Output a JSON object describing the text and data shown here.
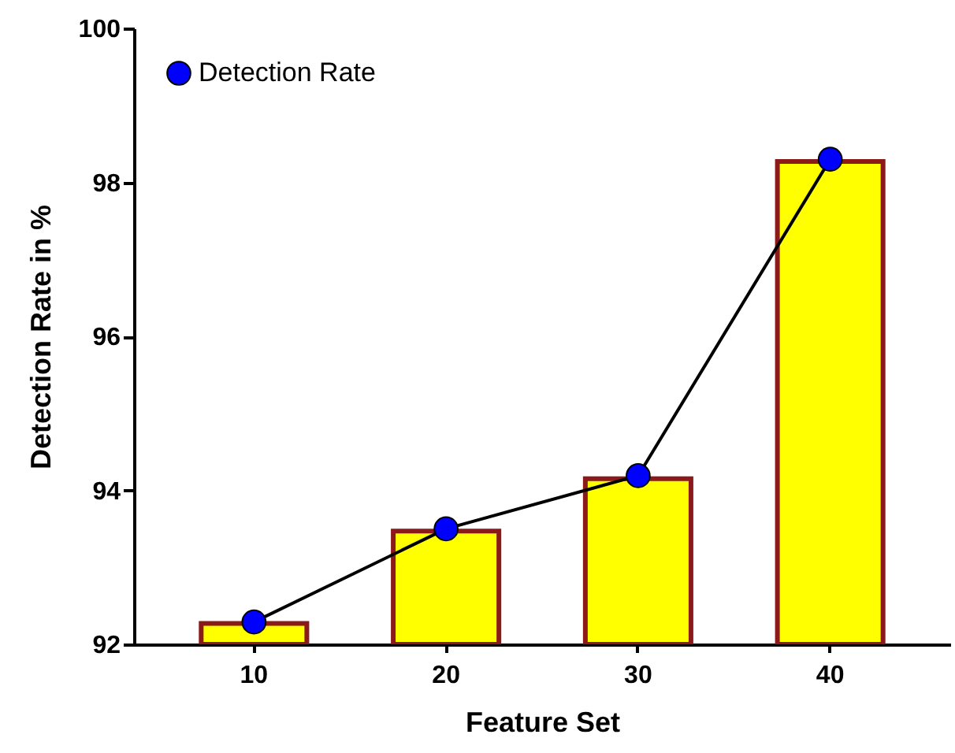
{
  "chart_data": {
    "type": "bar",
    "xlabel": "Feature Set",
    "ylabel": "Detection Rate in %",
    "categories": [
      "10",
      "20",
      "30",
      "40"
    ],
    "series": [
      {
        "color": "#ffff00",
        "values": [
          92.27,
          93.47,
          94.15,
          98.27
        ]
      },
      {
        "type": "line",
        "name": "Detection Rate",
        "color": "#0000ff",
        "values": [
          92.29,
          93.5,
          94.19,
          98.3
        ]
      }
    ],
    "ylim": [
      92,
      100
    ],
    "yticks": [
      92,
      94,
      96,
      98,
      100
    ],
    "grid": false,
    "legend": "top left",
    "marker": "circle",
    "line_style": "solid"
  }
}
